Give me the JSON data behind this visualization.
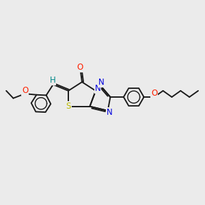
{
  "bg_color": "#ebebeb",
  "line_color": "#1a1a1a",
  "bond_lw": 1.4,
  "font_size": 8.5,
  "xlim": [
    -1.0,
    9.5
  ],
  "ylim": [
    -1.5,
    2.5
  ],
  "figsize": [
    3.0,
    3.0
  ],
  "dpi": 100,
  "colors": {
    "O": "#ff2000",
    "S": "#bbbb00",
    "N": "#0000dd",
    "H": "#008888",
    "C": "#1a1a1a"
  }
}
